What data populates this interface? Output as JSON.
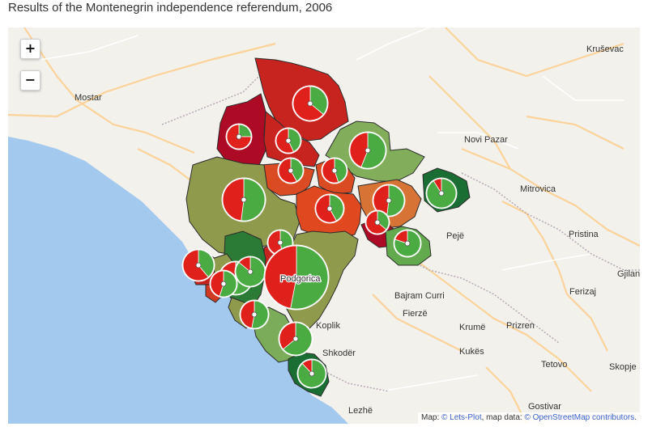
{
  "title": "Results of the Montenegrin independence referendum, 2006",
  "controls": {
    "zoom_in": "+",
    "zoom_out": "−"
  },
  "attribution": {
    "prefix": "Map: ",
    "copy1": "©",
    "lets_plot": "Lets-Plot",
    "mid": ", map data: ",
    "copy2": "©",
    "osm": "OpenStreetMap contributors",
    "end": "."
  },
  "basemap_labels": {
    "krusevac": "Kruševac",
    "mostar": "Mostar",
    "novi_pazar": "Novi Pazar",
    "mitrovica": "Mitrovica",
    "peje": "Pejë",
    "pristina": "Pristina",
    "gjilan": "Gjilan",
    "ferizaj": "Ferizaj",
    "bajram_curri": "Bajram Curri",
    "fierze": "Fierzë",
    "koplik": "Koplik",
    "krume": "Krumë",
    "prizren": "Prizren",
    "shkoder": "Shkodër",
    "kukes": "Kukës",
    "tetovo": "Tetovo",
    "skopje": "Skopje",
    "gostivar": "Gostivar",
    "lezhe": "Lezhë",
    "podgorica": "Podgorica"
  },
  "colors": {
    "yes": "#4aab43",
    "no": "#e0201b",
    "water": "#a4c9ee",
    "land": "#f3f1ec",
    "border": "#2c2c2c"
  },
  "municipalities": [
    {
      "id": "pluzine",
      "yes_share": 0.25
    },
    {
      "id": "zabljak",
      "yes_share": 0.43
    },
    {
      "id": "pljevlja",
      "yes_share": 0.36
    },
    {
      "id": "bijelo-polje",
      "yes_share": 0.56
    },
    {
      "id": "niksic",
      "yes_share": 0.52
    },
    {
      "id": "savnik",
      "yes_share": 0.42
    },
    {
      "id": "mojkovac",
      "yes_share": 0.45
    },
    {
      "id": "kolasin",
      "yes_share": 0.42
    },
    {
      "id": "berane",
      "yes_share": 0.52
    },
    {
      "id": "andrijevica",
      "yes_share": 0.36
    },
    {
      "id": "rozaje",
      "yes_share": 0.91
    },
    {
      "id": "plav",
      "yes_share": 0.8
    },
    {
      "id": "danilovgrad",
      "yes_share": 0.47
    },
    {
      "id": "herceg-novi",
      "yes_share": 0.39
    },
    {
      "id": "kotor",
      "yes_share": 0.55
    },
    {
      "id": "tivat",
      "yes_share": 0.55
    },
    {
      "id": "cetinje",
      "yes_share": 0.86
    },
    {
      "id": "podgorica",
      "yes_share": 0.53
    },
    {
      "id": "budva",
      "yes_share": 0.53
    },
    {
      "id": "bar",
      "yes_share": 0.64
    },
    {
      "id": "ulcinj",
      "yes_share": 0.88
    }
  ]
}
